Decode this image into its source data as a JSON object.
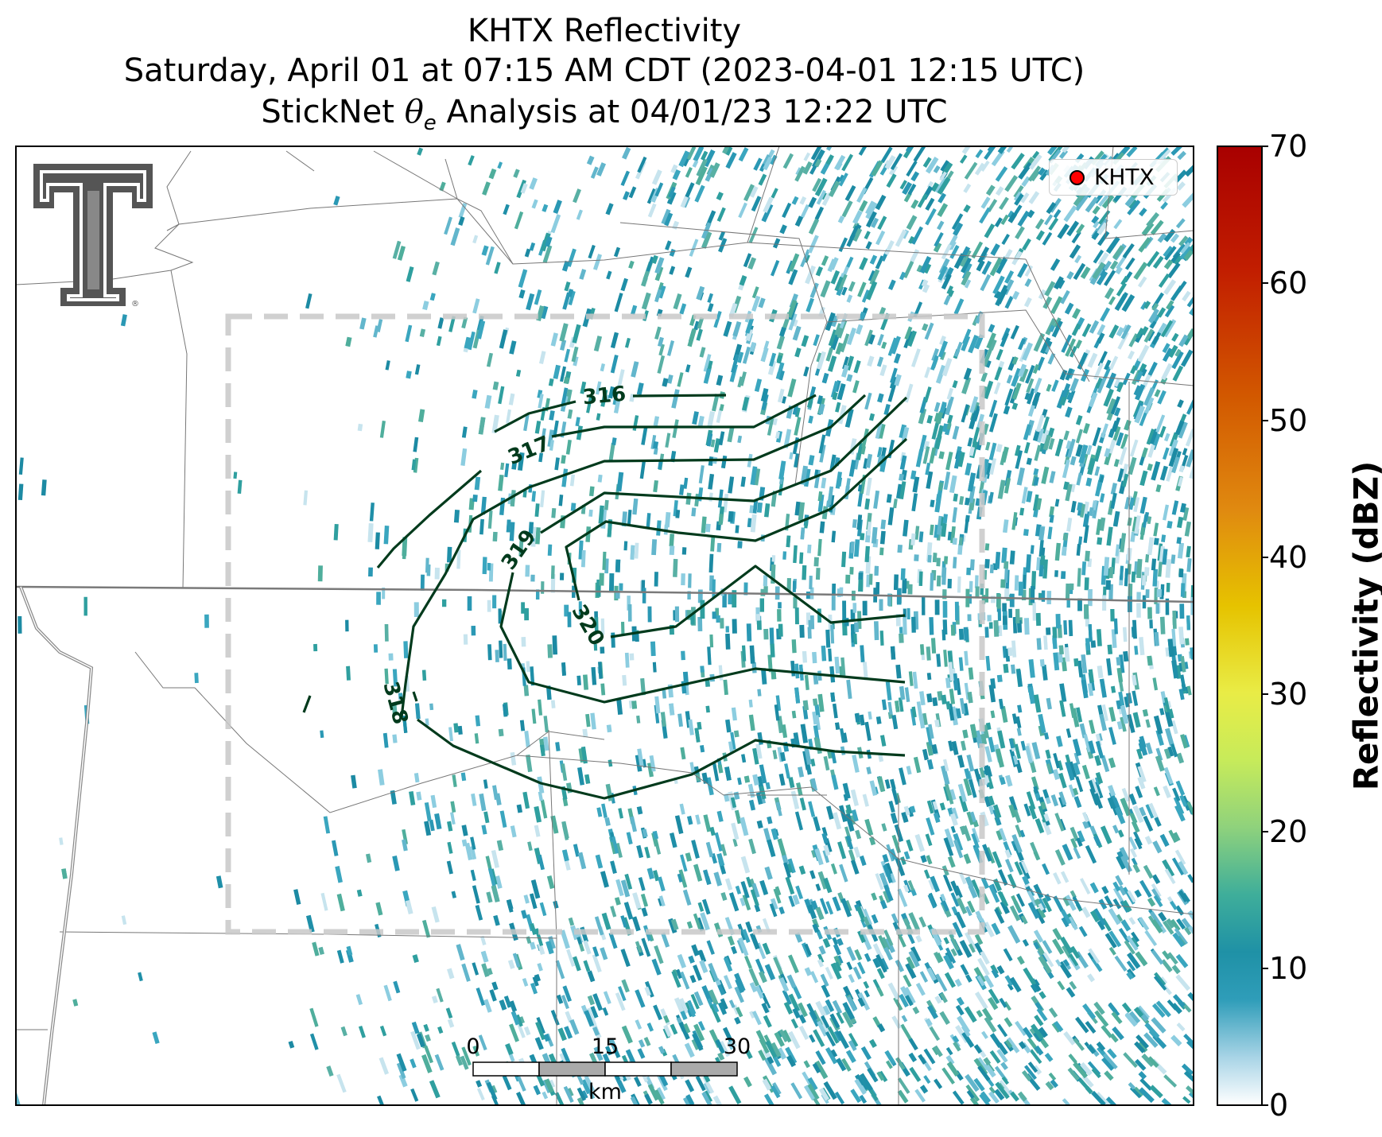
{
  "title": {
    "line1": "KHTX Reflectivity",
    "line2": "Saturday, April 01 at 07:15 AM CDT (2023-04-01 12:15 UTC)",
    "line3_prefix": "StickNet ",
    "line3_theta": "θ",
    "line3_sub": "e",
    "line3_suffix": " Analysis at 04/01/23 12:22 UTC"
  },
  "legend": {
    "station_label": "KHTX",
    "marker_color": "#ff0000"
  },
  "colorbar": {
    "label": "Reflectivity (dBZ)",
    "ticks": [
      "0",
      "10",
      "20",
      "30",
      "40",
      "50",
      "60",
      "70"
    ],
    "min": 0,
    "max": 70
  },
  "scale_bar": {
    "ticks": [
      "0",
      "15",
      "30"
    ],
    "unit": "km"
  },
  "contours": {
    "color": "#003a1c",
    "labels": [
      "316",
      "317",
      "318",
      "319",
      "320"
    ]
  },
  "logo": {
    "name": "Texas Tech Double T",
    "mark": "®"
  }
}
